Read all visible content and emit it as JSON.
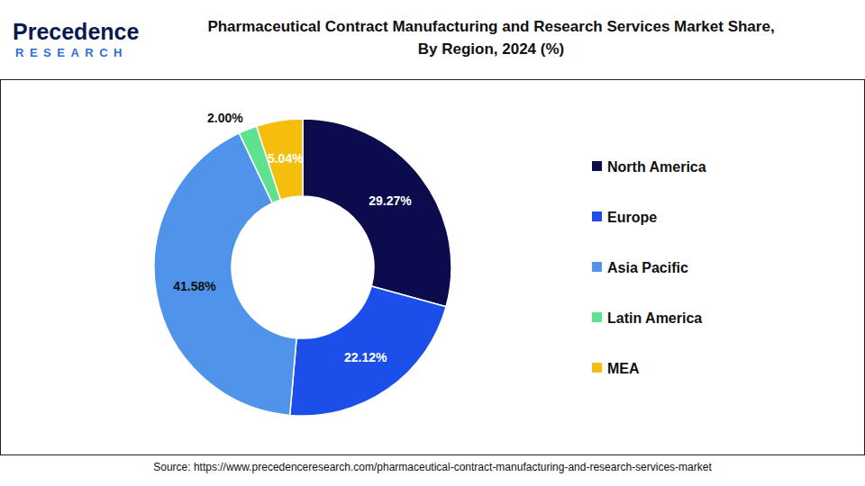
{
  "logo": {
    "name": "Precedence",
    "sub": "RESEARCH"
  },
  "chart_data": {
    "type": "donut",
    "title": "Pharmaceutical Contract Manufacturing and Research Services Market Share, By Region, 2024 (%)",
    "categories": [
      "North America",
      "Europe",
      "Asia Pacific",
      "Latin America",
      "MEA"
    ],
    "values": [
      29.27,
      22.12,
      41.58,
      2.0,
      5.04
    ],
    "value_labels": [
      "29.27%",
      "22.12%",
      "41.58%",
      "2.00%",
      "5.04%"
    ],
    "colors": [
      "#0b0b4e",
      "#1c4fea",
      "#4f93ea",
      "#5fe28f",
      "#f6be0c"
    ],
    "data_labels": true,
    "legend": "right",
    "source": "Source: https://www.precedenceresearch.com/pharmaceutical-contract-manufacturing-and-research-services-market"
  }
}
